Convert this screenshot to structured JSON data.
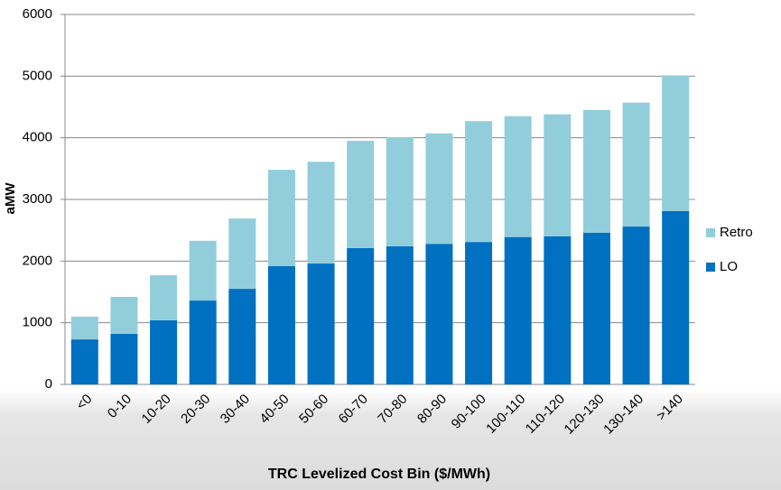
{
  "chart_data": {
    "type": "stacked_bar",
    "x_label": "TRC Levelized Cost Bin ($/MWh)",
    "y_label": "aMW",
    "categories": [
      "<0",
      "0-10",
      "10-20",
      "20-30",
      "30-40",
      "40-50",
      "50-60",
      "60-70",
      "70-80",
      "80-90",
      "90-100",
      "100-110",
      "110-120",
      "120-130",
      "130-140",
      ">140"
    ],
    "series": [
      {
        "name": "LO",
        "color": "#0070c0",
        "values": [
          730,
          820,
          1040,
          1360,
          1550,
          1920,
          1960,
          2210,
          2240,
          2280,
          2310,
          2390,
          2400,
          2460,
          2560,
          2810
        ]
      },
      {
        "name": "Retro",
        "color": "#92cddc",
        "values": [
          370,
          600,
          730,
          970,
          1140,
          1560,
          1650,
          1740,
          1770,
          1790,
          1960,
          1960,
          1980,
          1990,
          2010,
          2200
        ]
      }
    ],
    "ylim": [
      0,
      6000
    ],
    "yticks": [
      0,
      1000,
      2000,
      3000,
      4000,
      5000,
      6000
    ],
    "grid": true,
    "legend": "right"
  }
}
